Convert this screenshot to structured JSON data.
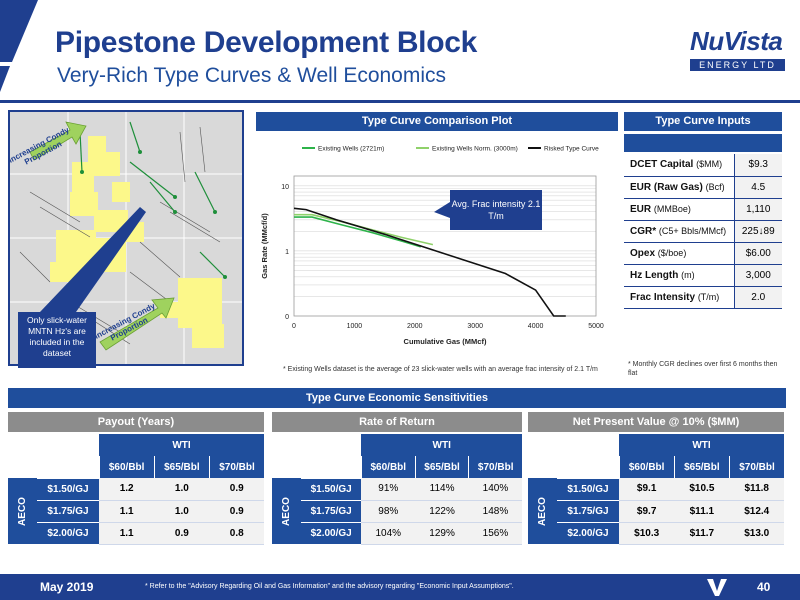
{
  "header": {
    "title": "Pipestone Development Block",
    "subtitle": "Very-Rich Type Curves & Well Economics",
    "logo_word": "NuVista",
    "logo_sub": "ENERGY LTD"
  },
  "map": {
    "arrow_top": "Increasing Condy Proportion",
    "arrow_bottom": "Increasing Condy Proportion",
    "callout": "Only slick-water MNTN Hz's are included in the dataset"
  },
  "comparison_plot": {
    "header": "Type Curve Comparison Plot",
    "callout": "Avg. Frac intensity 2.1 T/m",
    "footnote": "* Existing Wells dataset is the average of 23 slick-water wells with an average frac intensity of 2.1 T/m"
  },
  "chart_data": {
    "type": "line",
    "title": "",
    "xlabel": "Cumulative Gas (MMcf)",
    "ylabel": "Gas Rate (MMcf/d)",
    "xlim": [
      0,
      5000
    ],
    "y_scale": "log",
    "x_ticks": [
      "0",
      "1000",
      "2000",
      "3000",
      "4000",
      "5000"
    ],
    "y_ticks": [
      "10",
      "1",
      "0"
    ],
    "legend_position": "top",
    "series": [
      {
        "name": "Existing Wells (2721m)",
        "color": "#2db34a",
        "x": [
          0,
          300,
          800,
          1300,
          1800,
          2100
        ],
        "y": [
          3.3,
          3.3,
          2.5,
          1.9,
          1.4,
          1.15
        ]
      },
      {
        "name": "Existing Wells Norm. (3000m)",
        "color": "#8fd16a",
        "x": [
          0,
          300,
          800,
          1300,
          1800,
          2300
        ],
        "y": [
          3.6,
          3.6,
          2.8,
          2.1,
          1.6,
          1.25
        ]
      },
      {
        "name": "Risked Type Curve",
        "color": "#111111",
        "x": [
          0,
          200,
          700,
          1500,
          2500,
          3500,
          4000,
          4300,
          4500
        ],
        "y": [
          4.5,
          4.3,
          3.0,
          1.8,
          0.9,
          0.45,
          0.25,
          0.1,
          0.02
        ]
      }
    ]
  },
  "type_curve_inputs": {
    "header": "Type Curve Inputs",
    "rows": [
      {
        "label": "DCET Capital",
        "unit": "($MM)",
        "value": "$9.3"
      },
      {
        "label": "EUR (Raw Gas)",
        "unit": "(Bcf)",
        "value": "4.5"
      },
      {
        "label": "EUR",
        "unit": "(MMBoe)",
        "value": "1,110"
      },
      {
        "label": "CGR*",
        "unit": "(C5+ Bbls/MMcf)",
        "value": "225↓89"
      },
      {
        "label": "Opex",
        "unit": "($/boe)",
        "value": "$6.00"
      },
      {
        "label": "Hz Length",
        "unit": "(m)",
        "value": "3,000"
      },
      {
        "label": "Frac Intensity",
        "unit": "(T/m)",
        "value": "2.0"
      }
    ],
    "footnote": "* Monthly CGR declines over first 6 months then flat"
  },
  "sensitivities": {
    "header": "Type Curve Economic Sensitivities",
    "wti_label": "WTI",
    "aeco_label": "AECO",
    "wti_cols": [
      "$60/Bbl",
      "$65/Bbl",
      "$70/Bbl"
    ],
    "aeco_rows": [
      "$1.50/GJ",
      "$1.75/GJ",
      "$2.00/GJ"
    ],
    "tables": [
      {
        "title": "Payout (Years)",
        "values": [
          [
            "1.2",
            "1.0",
            "0.9"
          ],
          [
            "1.1",
            "1.0",
            "0.9"
          ],
          [
            "1.1",
            "0.9",
            "0.8"
          ]
        ]
      },
      {
        "title": "Rate of Return",
        "values": [
          [
            "91%",
            "114%",
            "140%"
          ],
          [
            "98%",
            "122%",
            "148%"
          ],
          [
            "104%",
            "129%",
            "156%"
          ]
        ]
      },
      {
        "title": "Net Present Value @ 10% ($MM)",
        "values": [
          [
            "$9.1",
            "$10.5",
            "$11.8"
          ],
          [
            "$9.7",
            "$11.1",
            "$12.4"
          ],
          [
            "$10.3",
            "$11.7",
            "$13.0"
          ]
        ]
      }
    ]
  },
  "footer": {
    "month": "May 2019",
    "note": "* Refer to the \"Advisory Regarding Oil and Gas Information\" and the advisory regarding \"Economic Input Assumptions\".",
    "page": "40"
  },
  "colors": {
    "brand": "#1f3f8f",
    "header_blue": "#1f4e9c",
    "map_yellow": "#fcf88a",
    "arrow_green": "#9fd25e"
  }
}
